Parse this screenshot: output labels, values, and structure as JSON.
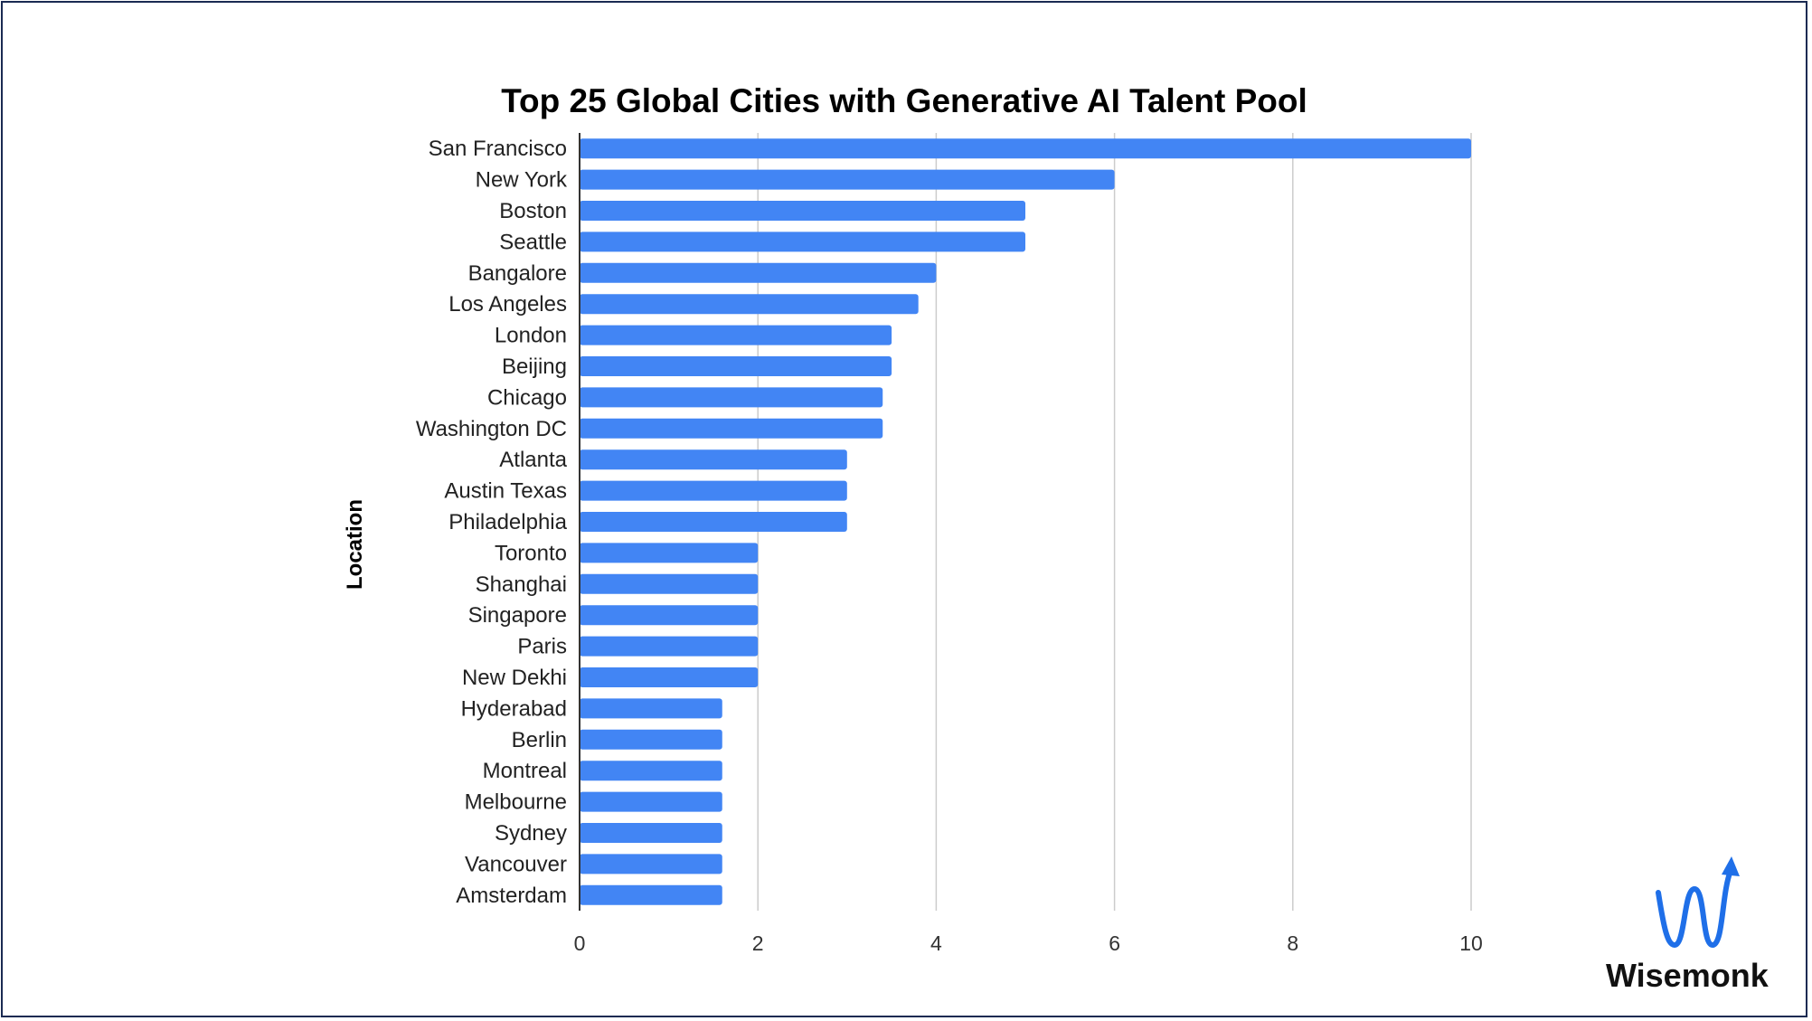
{
  "brand": {
    "name": "Wisemonk",
    "accent_color": "#1f6fe8"
  },
  "chart_data": {
    "type": "bar",
    "orientation": "horizontal",
    "title": "Top 25 Global Cities with Generative AI Talent Pool",
    "xlabel": "",
    "ylabel": "Location",
    "categories": [
      "San Francisco",
      "New York",
      "Boston",
      "Seattle",
      "Bangalore",
      "Los Angeles",
      "London",
      "Beijing",
      "Chicago",
      "Washington DC",
      "Atlanta",
      "Austin Texas",
      "Philadelphia",
      "Toronto",
      "Shanghai",
      "Singapore",
      "Paris",
      "New Dekhi",
      "Hyderabad",
      "Berlin",
      "Montreal",
      "Melbourne",
      "Sydney",
      "Vancouver",
      "Amsterdam"
    ],
    "values": [
      10,
      6,
      5,
      5,
      4,
      3.8,
      3.5,
      3.5,
      3.4,
      3.4,
      3,
      3,
      3,
      2,
      2,
      2,
      2,
      2,
      1.6,
      1.6,
      1.6,
      1.6,
      1.6,
      1.6,
      1.6
    ],
    "xlim": [
      0,
      10
    ],
    "xticks": [
      "0",
      "2",
      "4",
      "6",
      "8",
      "10"
    ],
    "grid": true,
    "legend": "none",
    "bar_color": "#4285f4",
    "grid_color": "#cccccc"
  }
}
